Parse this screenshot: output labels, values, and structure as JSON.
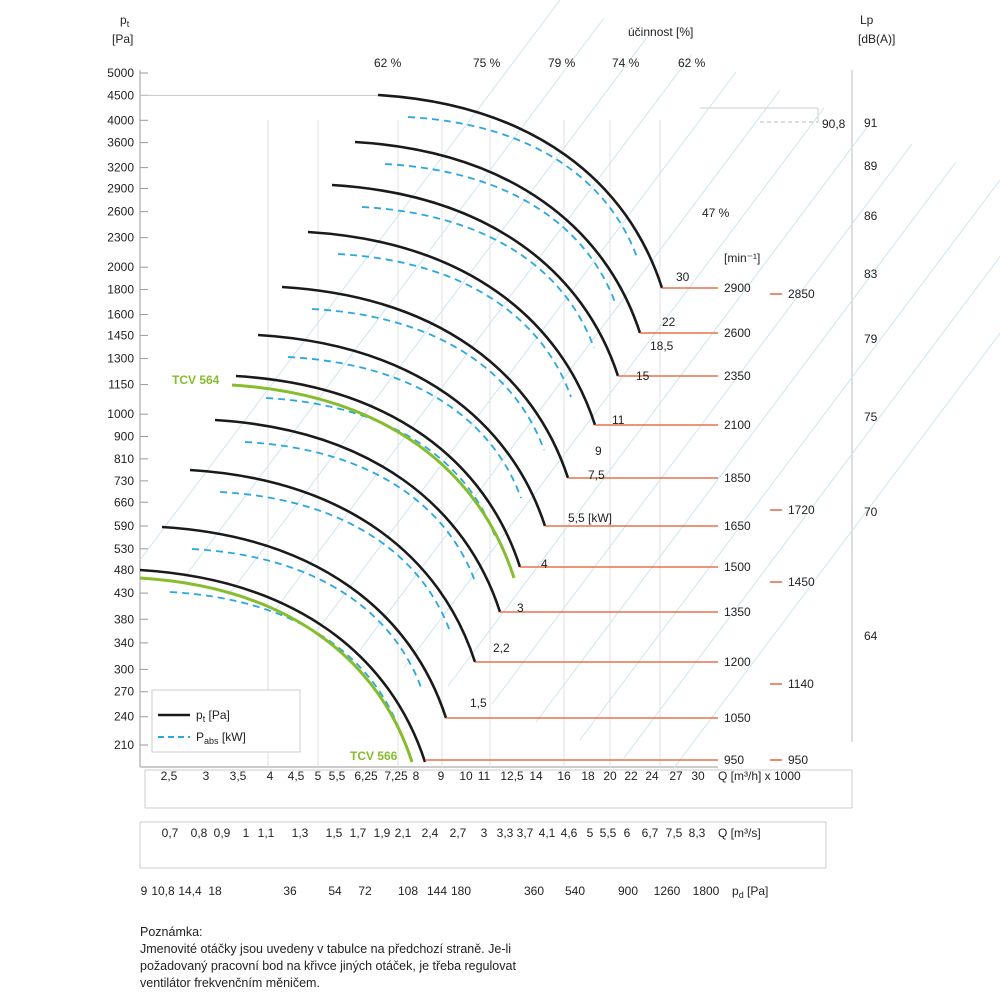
{
  "chart_data": {
    "type": "line",
    "title": "",
    "y_axis": {
      "label_line1": "p",
      "label_sub": "t",
      "label_line2": "[Pa]",
      "ticks": [
        5000,
        4500,
        4000,
        3600,
        3200,
        2900,
        2600,
        2300,
        2000,
        1800,
        1600,
        1450,
        1300,
        1150,
        1000,
        900,
        810,
        730,
        660,
        590,
        530,
        480,
        430,
        380,
        340,
        300,
        270,
        240,
        210
      ],
      "scale": "log"
    },
    "right_axis": {
      "label_line1": "Lp",
      "label_line2": "[dB(A)]",
      "ticks": [
        "91",
        "89",
        "86",
        "83",
        "79",
        "75",
        "70",
        "64"
      ],
      "peak_label": "90,8"
    },
    "efficiency": {
      "label": "účinnost [%]",
      "top_labels": [
        "62 %",
        "75 %",
        "79 %",
        "74 %",
        "62 %"
      ],
      "side_label": "47 %"
    },
    "speed": {
      "unit": "[min⁻¹]",
      "labels": [
        "2900",
        "2600",
        "2350",
        "2100",
        "1850",
        "1650",
        "1500",
        "1350",
        "1200",
        "1050",
        "950"
      ],
      "alt_labels": [
        "2850",
        "1720",
        "1450",
        "1140",
        "950"
      ]
    },
    "power_labels": [
      "30",
      "22",
      "18,5",
      "15",
      "11",
      "9",
      "7,5",
      "5,5 [kW]",
      "4",
      "3",
      "2,2",
      "1,5"
    ],
    "series": [
      {
        "name": "TCV 564",
        "values": [
          1150,
          1120,
          1020,
          870,
          650,
          480
        ]
      },
      {
        "name": "TCV 566",
        "values": [
          465,
          445,
          395,
          330,
          260,
          195
        ]
      }
    ],
    "x_axes": {
      "q_m3h": {
        "ticks": [
          "2,5",
          "3",
          "3,5",
          "4",
          "4,5",
          "5",
          "5,5",
          "6,25",
          "7,25",
          "8",
          "9",
          "10",
          "11",
          "12,5",
          "14",
          "16",
          "18",
          "20",
          "22",
          "24",
          "27",
          "30"
        ],
        "label": "Q [m³/h] x 1000"
      },
      "q_m3s": {
        "ticks": [
          "0,7",
          "0,8",
          "0,9",
          "1",
          "1,1",
          "1,3",
          "1,5",
          "1,7",
          "1,9",
          "2,1",
          "2,4",
          "2,7",
          "3",
          "3,3",
          "3,7",
          "4,1",
          "4,6",
          "5",
          "5,5",
          "6",
          "6,7",
          "7,5",
          "8,3"
        ],
        "label": "Q [m³/s]"
      },
      "pd": {
        "ticks": [
          "9",
          "10,8",
          "14,4",
          "18",
          "36",
          "54",
          "72",
          "108",
          "144",
          "180",
          "360",
          "540",
          "900",
          "1260",
          "1800"
        ],
        "label_main": "p",
        "label_sub": "d",
        "label_unit": " [Pa]"
      }
    },
    "legend": [
      {
        "label_main": "p",
        "label_sub": "t",
        "label_unit": " [Pa]",
        "style": "solid",
        "color": "#1a1a1a"
      },
      {
        "label_main": "P",
        "label_sub": "abs",
        "label_unit": " [kW]",
        "style": "dashed",
        "color": "#29a8df"
      }
    ],
    "grid": true
  },
  "note": {
    "title": "Poznámka:",
    "lines": [
      "Jmenovité otáčky jsou uvedeny v tabulce na předchozí straně. Je-li",
      "požadovaný pracovní bod na křivce jiných otáček, je třeba regulovat",
      "ventilátor frekvenčním měničem."
    ]
  },
  "colors": {
    "curve": "#1a1a1a",
    "power": "#29a8df",
    "green": "#86bd2d",
    "speed": "#e8704b",
    "grid": "#cfe4f0"
  }
}
